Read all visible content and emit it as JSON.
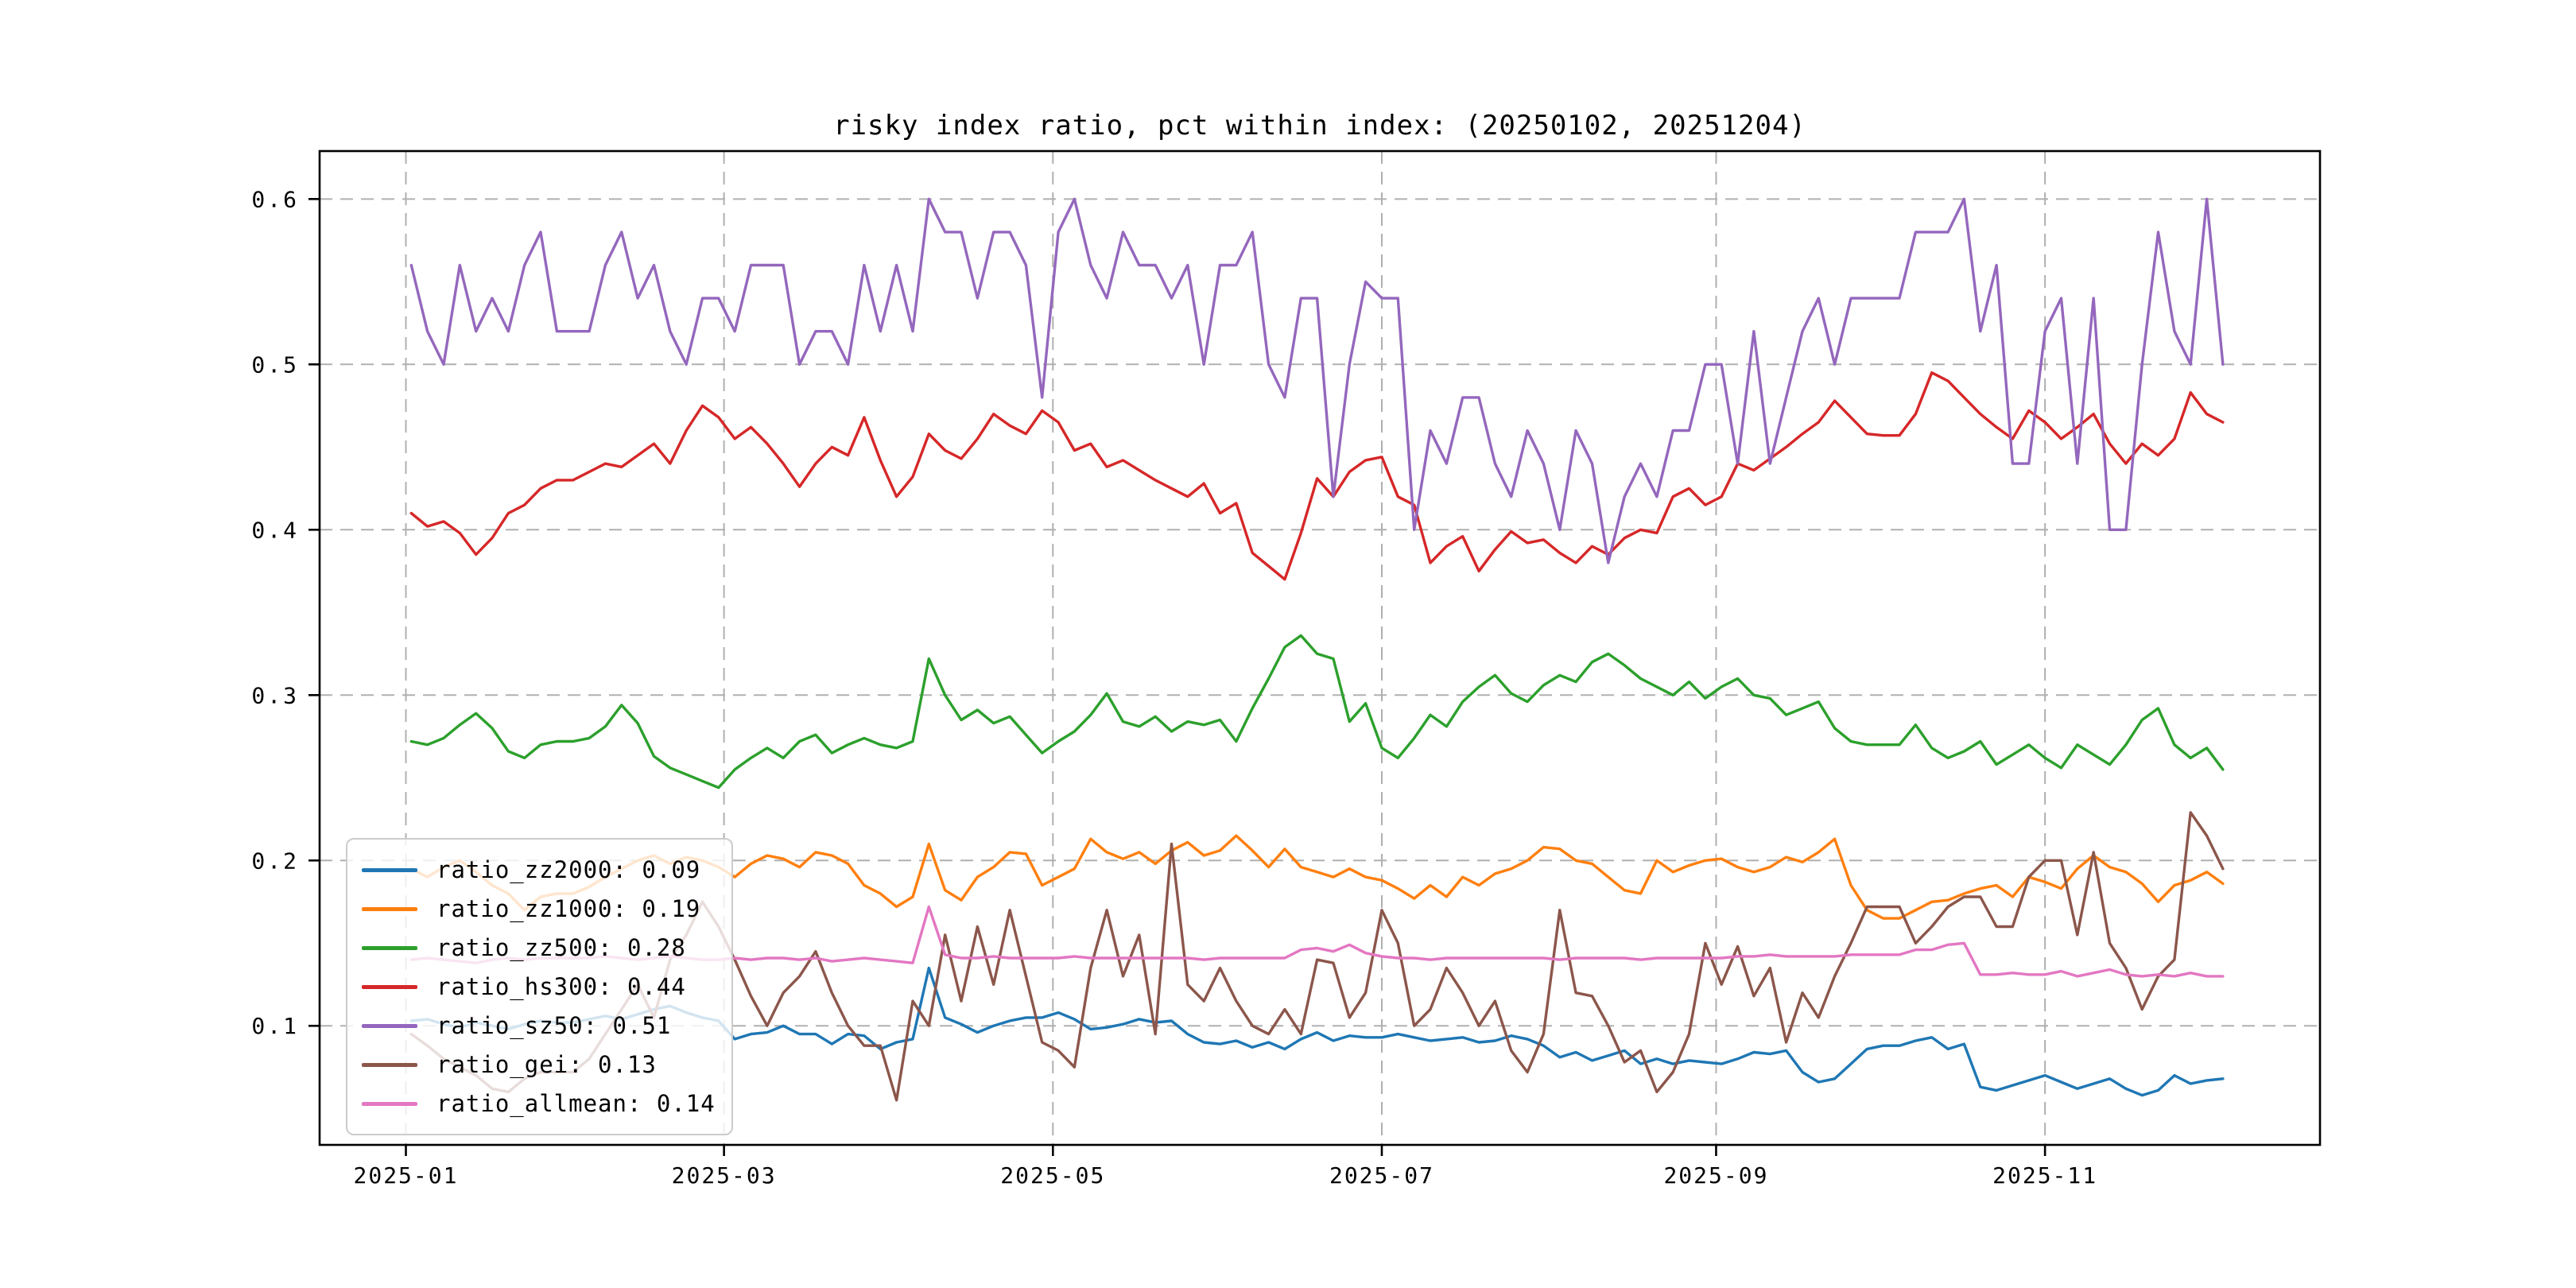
{
  "title": "risky index ratio, pct within index: (20250102, 20251204)",
  "chart_data": {
    "type": "line",
    "title": "risky index ratio, pct within index: (20250102, 20251204)",
    "date_range": [
      "20250102",
      "20251204"
    ],
    "grid": "dashed",
    "grid_color": "#b0b0b0",
    "legend_position": "lower left",
    "xlim_days": [
      -17,
      354
    ],
    "ylim": [
      0.028,
      0.629
    ],
    "x_start_day": 0,
    "x_step_days": 3,
    "x_axis": {
      "ticks": [
        {
          "label": "2025-01",
          "day": -1
        },
        {
          "label": "2025-03",
          "day": 58
        },
        {
          "label": "2025-05",
          "day": 119
        },
        {
          "label": "2025-07",
          "day": 180
        },
        {
          "label": "2025-09",
          "day": 242
        },
        {
          "label": "2025-11",
          "day": 303
        }
      ]
    },
    "y_axis": {
      "ticks": [
        {
          "label": "0.1",
          "value": 0.1
        },
        {
          "label": "0.2",
          "value": 0.2
        },
        {
          "label": "0.3",
          "value": 0.3
        },
        {
          "label": "0.4",
          "value": 0.4
        },
        {
          "label": "0.5",
          "value": 0.5
        },
        {
          "label": "0.6",
          "value": 0.6
        }
      ]
    },
    "series": [
      {
        "name": "ratio_zz2000",
        "legend_label": "ratio_zz2000: 0.09",
        "legend_value": 0.09,
        "color": "#1f77b4",
        "values": [
          0.103,
          0.104,
          0.101,
          0.099,
          0.102,
          0.1,
          0.098,
          0.101,
          0.103,
          0.102,
          0.102,
          0.104,
          0.106,
          0.104,
          0.107,
          0.11,
          0.112,
          0.108,
          0.105,
          0.103,
          0.092,
          0.095,
          0.096,
          0.1,
          0.095,
          0.095,
          0.089,
          0.095,
          0.094,
          0.086,
          0.09,
          0.092,
          0.135,
          0.105,
          0.101,
          0.096,
          0.1,
          0.103,
          0.105,
          0.105,
          0.108,
          0.104,
          0.098,
          0.099,
          0.101,
          0.104,
          0.102,
          0.103,
          0.095,
          0.09,
          0.089,
          0.091,
          0.087,
          0.09,
          0.086,
          0.092,
          0.096,
          0.091,
          0.094,
          0.093,
          0.093,
          0.095,
          0.093,
          0.091,
          0.092,
          0.093,
          0.09,
          0.091,
          0.094,
          0.092,
          0.088,
          0.081,
          0.084,
          0.079,
          0.082,
          0.085,
          0.077,
          0.08,
          0.077,
          0.079,
          0.078,
          0.077,
          0.08,
          0.084,
          0.083,
          0.085,
          0.072,
          0.066,
          0.068,
          0.077,
          0.086,
          0.088,
          0.088,
          0.091,
          0.093,
          0.086,
          0.089,
          0.063,
          0.061,
          0.064,
          0.067,
          0.07,
          0.066,
          0.062,
          0.065,
          0.068,
          0.062,
          0.058,
          0.061,
          0.07,
          0.065,
          0.067,
          0.068
        ]
      },
      {
        "name": "ratio_zz1000",
        "legend_label": "ratio_zz1000: 0.19",
        "legend_value": 0.19,
        "color": "#ff7f0e",
        "values": [
          0.195,
          0.19,
          0.196,
          0.2,
          0.193,
          0.185,
          0.18,
          0.17,
          0.178,
          0.18,
          0.18,
          0.184,
          0.19,
          0.195,
          0.2,
          0.203,
          0.198,
          0.202,
          0.2,
          0.196,
          0.19,
          0.198,
          0.203,
          0.201,
          0.196,
          0.205,
          0.203,
          0.198,
          0.185,
          0.18,
          0.172,
          0.178,
          0.21,
          0.182,
          0.176,
          0.19,
          0.196,
          0.205,
          0.204,
          0.185,
          0.19,
          0.195,
          0.213,
          0.205,
          0.201,
          0.205,
          0.198,
          0.206,
          0.211,
          0.203,
          0.206,
          0.215,
          0.206,
          0.196,
          0.207,
          0.196,
          0.193,
          0.19,
          0.195,
          0.19,
          0.188,
          0.183,
          0.177,
          0.185,
          0.178,
          0.19,
          0.185,
          0.192,
          0.195,
          0.2,
          0.208,
          0.207,
          0.2,
          0.198,
          0.19,
          0.182,
          0.18,
          0.2,
          0.193,
          0.197,
          0.2,
          0.201,
          0.196,
          0.193,
          0.196,
          0.202,
          0.199,
          0.205,
          0.213,
          0.185,
          0.17,
          0.165,
          0.165,
          0.17,
          0.175,
          0.176,
          0.18,
          0.183,
          0.185,
          0.178,
          0.19,
          0.187,
          0.183,
          0.195,
          0.203,
          0.196,
          0.193,
          0.186,
          0.175,
          0.185,
          0.188,
          0.193,
          0.186
        ]
      },
      {
        "name": "ratio_zz500",
        "legend_label": "ratio_zz500: 0.28",
        "legend_value": 0.28,
        "color": "#2ca02c",
        "values": [
          0.272,
          0.27,
          0.274,
          0.282,
          0.289,
          0.28,
          0.266,
          0.262,
          0.27,
          0.272,
          0.272,
          0.274,
          0.281,
          0.294,
          0.283,
          0.263,
          0.256,
          0.252,
          0.248,
          0.244,
          0.255,
          0.262,
          0.268,
          0.262,
          0.272,
          0.276,
          0.265,
          0.27,
          0.274,
          0.27,
          0.268,
          0.272,
          0.322,
          0.3,
          0.285,
          0.291,
          0.283,
          0.287,
          0.276,
          0.265,
          0.272,
          0.278,
          0.288,
          0.301,
          0.284,
          0.281,
          0.287,
          0.278,
          0.284,
          0.282,
          0.285,
          0.272,
          0.292,
          0.31,
          0.329,
          0.336,
          0.325,
          0.322,
          0.284,
          0.295,
          0.268,
          0.262,
          0.274,
          0.288,
          0.281,
          0.296,
          0.305,
          0.312,
          0.301,
          0.296,
          0.306,
          0.312,
          0.308,
          0.32,
          0.325,
          0.318,
          0.31,
          0.305,
          0.3,
          0.308,
          0.298,
          0.305,
          0.31,
          0.3,
          0.298,
          0.288,
          0.292,
          0.296,
          0.28,
          0.272,
          0.27,
          0.27,
          0.27,
          0.282,
          0.268,
          0.262,
          0.266,
          0.272,
          0.258,
          0.264,
          0.27,
          0.262,
          0.256,
          0.27,
          0.264,
          0.258,
          0.27,
          0.285,
          0.292,
          0.27,
          0.262,
          0.268,
          0.255
        ]
      },
      {
        "name": "ratio_hs300",
        "legend_label": "ratio_hs300: 0.44",
        "legend_value": 0.44,
        "color": "#d62728",
        "values": [
          0.41,
          0.402,
          0.405,
          0.398,
          0.385,
          0.395,
          0.41,
          0.415,
          0.425,
          0.43,
          0.43,
          0.435,
          0.44,
          0.438,
          0.445,
          0.452,
          0.44,
          0.46,
          0.475,
          0.468,
          0.455,
          0.462,
          0.452,
          0.44,
          0.426,
          0.44,
          0.45,
          0.445,
          0.468,
          0.442,
          0.42,
          0.432,
          0.458,
          0.448,
          0.443,
          0.455,
          0.47,
          0.463,
          0.458,
          0.472,
          0.465,
          0.448,
          0.452,
          0.438,
          0.442,
          0.436,
          0.43,
          0.425,
          0.42,
          0.428,
          0.41,
          0.416,
          0.386,
          0.378,
          0.37,
          0.398,
          0.431,
          0.42,
          0.435,
          0.442,
          0.444,
          0.42,
          0.415,
          0.38,
          0.39,
          0.396,
          0.375,
          0.388,
          0.399,
          0.392,
          0.394,
          0.386,
          0.38,
          0.39,
          0.385,
          0.395,
          0.4,
          0.398,
          0.42,
          0.425,
          0.415,
          0.42,
          0.44,
          0.436,
          0.443,
          0.45,
          0.458,
          0.465,
          0.478,
          0.468,
          0.458,
          0.457,
          0.457,
          0.47,
          0.495,
          0.49,
          0.48,
          0.47,
          0.462,
          0.455,
          0.472,
          0.465,
          0.455,
          0.462,
          0.47,
          0.452,
          0.44,
          0.452,
          0.445,
          0.455,
          0.483,
          0.47,
          0.465
        ]
      },
      {
        "name": "ratio_sz50",
        "legend_label": "ratio_sz50: 0.51",
        "legend_value": 0.51,
        "color": "#9467bd",
        "values": [
          0.56,
          0.52,
          0.5,
          0.56,
          0.52,
          0.54,
          0.52,
          0.56,
          0.58,
          0.52,
          0.52,
          0.52,
          0.56,
          0.58,
          0.54,
          0.56,
          0.52,
          0.5,
          0.54,
          0.54,
          0.52,
          0.56,
          0.56,
          0.56,
          0.5,
          0.52,
          0.52,
          0.5,
          0.56,
          0.52,
          0.56,
          0.52,
          0.6,
          0.58,
          0.58,
          0.54,
          0.58,
          0.58,
          0.56,
          0.48,
          0.58,
          0.6,
          0.56,
          0.54,
          0.58,
          0.56,
          0.56,
          0.54,
          0.56,
          0.5,
          0.56,
          0.56,
          0.58,
          0.5,
          0.48,
          0.54,
          0.54,
          0.42,
          0.5,
          0.55,
          0.54,
          0.54,
          0.4,
          0.46,
          0.44,
          0.48,
          0.48,
          0.44,
          0.42,
          0.46,
          0.44,
          0.4,
          0.46,
          0.44,
          0.38,
          0.42,
          0.44,
          0.42,
          0.46,
          0.46,
          0.5,
          0.5,
          0.44,
          0.52,
          0.44,
          0.48,
          0.52,
          0.54,
          0.5,
          0.54,
          0.54,
          0.54,
          0.54,
          0.58,
          0.58,
          0.58,
          0.6,
          0.52,
          0.56,
          0.44,
          0.44,
          0.52,
          0.54,
          0.44,
          0.54,
          0.4,
          0.4,
          0.5,
          0.58,
          0.52,
          0.5,
          0.6,
          0.5
        ]
      },
      {
        "name": "ratio_gei",
        "legend_label": "ratio_gei: 0.13",
        "legend_value": 0.13,
        "color": "#8c564b",
        "values": [
          0.095,
          0.088,
          0.08,
          0.075,
          0.07,
          0.062,
          0.06,
          0.068,
          0.072,
          0.072,
          0.072,
          0.08,
          0.095,
          0.11,
          0.125,
          0.105,
          0.14,
          0.155,
          0.175,
          0.16,
          0.14,
          0.118,
          0.1,
          0.12,
          0.13,
          0.145,
          0.12,
          0.1,
          0.088,
          0.088,
          0.055,
          0.115,
          0.1,
          0.155,
          0.115,
          0.16,
          0.125,
          0.17,
          0.13,
          0.09,
          0.085,
          0.075,
          0.135,
          0.17,
          0.13,
          0.155,
          0.095,
          0.21,
          0.125,
          0.115,
          0.135,
          0.115,
          0.1,
          0.095,
          0.11,
          0.095,
          0.14,
          0.138,
          0.105,
          0.12,
          0.17,
          0.15,
          0.1,
          0.11,
          0.135,
          0.12,
          0.1,
          0.115,
          0.085,
          0.072,
          0.095,
          0.17,
          0.12,
          0.118,
          0.1,
          0.078,
          0.085,
          0.06,
          0.072,
          0.095,
          0.15,
          0.125,
          0.148,
          0.118,
          0.135,
          0.09,
          0.12,
          0.105,
          0.13,
          0.15,
          0.172,
          0.172,
          0.172,
          0.15,
          0.16,
          0.172,
          0.178,
          0.178,
          0.16,
          0.16,
          0.19,
          0.2,
          0.2,
          0.155,
          0.205,
          0.15,
          0.135,
          0.11,
          0.13,
          0.14,
          0.229,
          0.215,
          0.195
        ]
      },
      {
        "name": "ratio_allmean",
        "legend_label": "ratio_allmean: 0.14",
        "legend_value": 0.14,
        "color": "#e377c2",
        "values": [
          0.14,
          0.141,
          0.14,
          0.139,
          0.138,
          0.14,
          0.141,
          0.14,
          0.141,
          0.141,
          0.141,
          0.141,
          0.142,
          0.141,
          0.14,
          0.141,
          0.142,
          0.141,
          0.14,
          0.14,
          0.141,
          0.14,
          0.141,
          0.141,
          0.14,
          0.141,
          0.139,
          0.14,
          0.141,
          0.14,
          0.139,
          0.138,
          0.172,
          0.143,
          0.141,
          0.141,
          0.142,
          0.141,
          0.141,
          0.141,
          0.141,
          0.142,
          0.141,
          0.141,
          0.141,
          0.141,
          0.141,
          0.141,
          0.141,
          0.14,
          0.141,
          0.141,
          0.141,
          0.141,
          0.141,
          0.146,
          0.147,
          0.145,
          0.149,
          0.144,
          0.142,
          0.141,
          0.141,
          0.14,
          0.141,
          0.141,
          0.141,
          0.141,
          0.141,
          0.141,
          0.141,
          0.14,
          0.141,
          0.141,
          0.141,
          0.141,
          0.14,
          0.141,
          0.141,
          0.141,
          0.141,
          0.141,
          0.142,
          0.142,
          0.143,
          0.142,
          0.142,
          0.142,
          0.142,
          0.143,
          0.143,
          0.143,
          0.143,
          0.146,
          0.146,
          0.149,
          0.15,
          0.131,
          0.131,
          0.132,
          0.131,
          0.131,
          0.133,
          0.13,
          0.132,
          0.134,
          0.131,
          0.13,
          0.131,
          0.13,
          0.132,
          0.13,
          0.13
        ]
      }
    ]
  }
}
